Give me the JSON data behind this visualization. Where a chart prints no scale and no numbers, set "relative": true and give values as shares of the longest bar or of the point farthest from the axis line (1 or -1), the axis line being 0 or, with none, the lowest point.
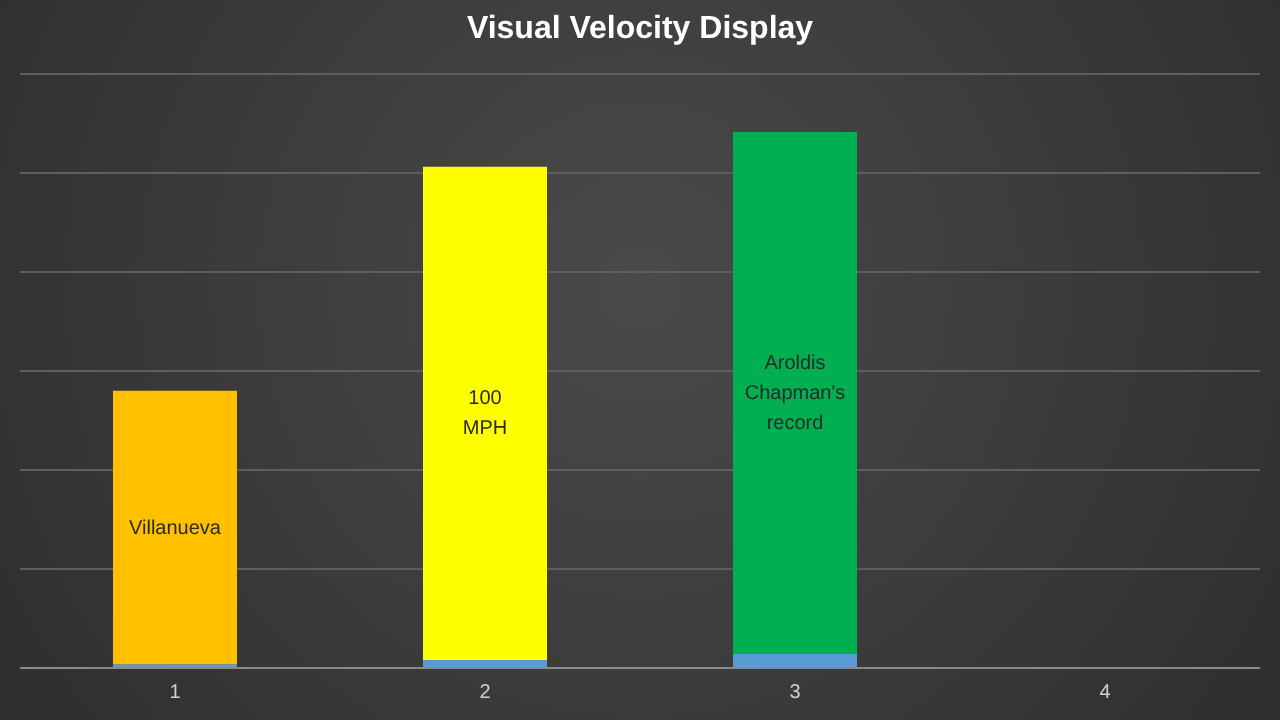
{
  "chart_data": {
    "type": "bar",
    "title": "Visual Velocity Display",
    "categories": [
      "1",
      "2",
      "3",
      "4"
    ],
    "relative": true,
    "stacked": true,
    "grid": "y",
    "legend": false,
    "series": [
      {
        "color": "#5b9bd5",
        "values": [
          0.007,
          0.015,
          0.026,
          null
        ]
      },
      {
        "colors": [
          "#ffc000",
          "#ffff00",
          "#00b050",
          "#ffc000"
        ],
        "values": [
          0.51,
          0.92,
          0.974,
          null
        ]
      }
    ],
    "annotations": [
      "Villanueva",
      "100 MPH",
      "Aroldis Chapman's record"
    ]
  }
}
